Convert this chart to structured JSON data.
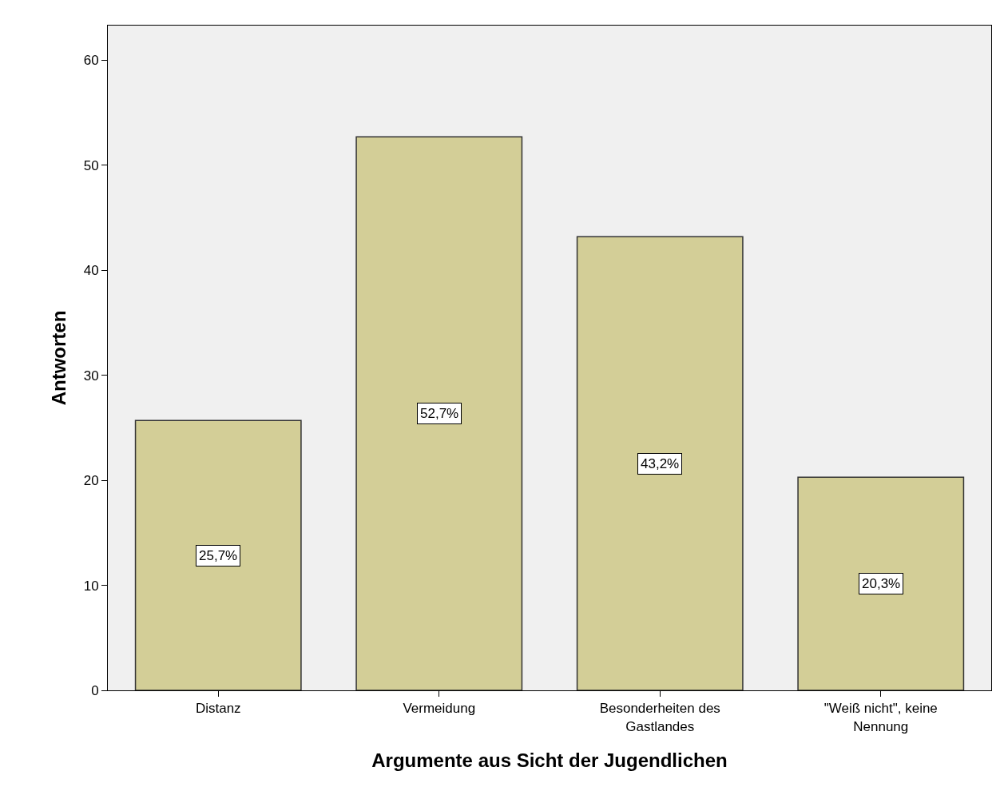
{
  "chart_data": {
    "type": "bar",
    "xlabel": "Argumente aus Sicht der Jugendlichen",
    "ylabel": "Antworten",
    "categories": [
      "Distanz",
      "Vermeidung",
      "Besonderheiten des Gastlandes",
      "\"Weiß nicht\", keine Nennung"
    ],
    "values": [
      25.7,
      52.7,
      43.2,
      20.3
    ],
    "value_labels": [
      "25,7%",
      "52,7%",
      "43,2%",
      "20,3%"
    ],
    "color": "#d3ce97",
    "ylim": [
      0,
      63.3
    ],
    "yticks": [
      0,
      10,
      20,
      30,
      40,
      50,
      60
    ],
    "grid": false,
    "legend": false
  }
}
